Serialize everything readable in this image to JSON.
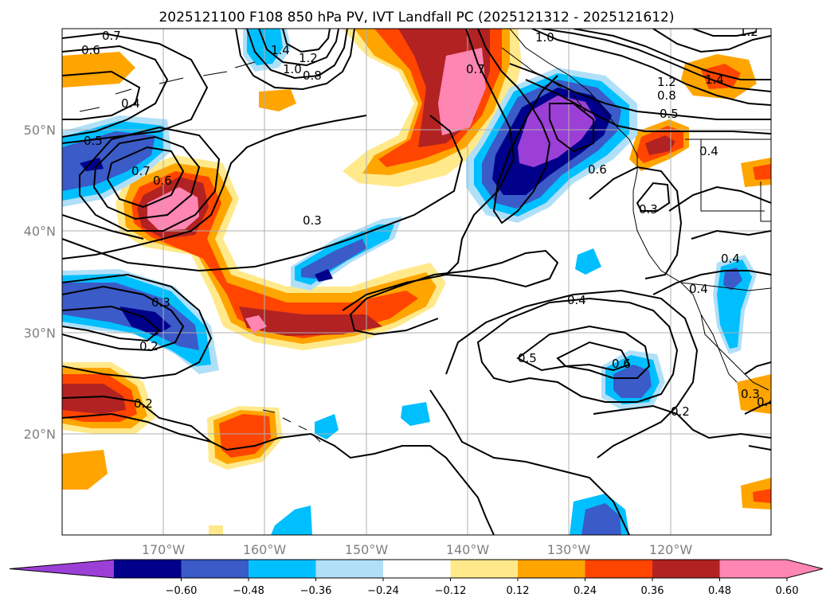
{
  "title": "2025121100 F108 850 hPa PV, IVT Landfall PC (2025121312 - 2025121612)",
  "map": {
    "lat_labels": [
      "50°N",
      "40°N",
      "30°N",
      "20°N"
    ],
    "lon_labels": [
      "170°W",
      "160°W",
      "150°W",
      "140°W",
      "130°W",
      "120°W"
    ]
  },
  "contour_labels": [
    "0.7",
    "0.6",
    "1.4",
    "1.0",
    "1.2",
    "0.8",
    "0.7",
    "1.0",
    "1.2",
    "1.4",
    "1.2",
    "0.8",
    "0.5",
    "0.4",
    "0.5",
    "0.7",
    "0.6",
    "0.6",
    "0.4",
    "0.3",
    "0.3",
    "0.4",
    "0.4",
    "0.3",
    "0.2",
    "0.4",
    "0.5",
    "0.6",
    "0.2",
    "0.2",
    "0.4",
    "0.3"
  ],
  "colorbar": {
    "ticks": [
      "−0.60",
      "−0.48",
      "−0.36",
      "−0.24",
      "−0.12",
      "0.12",
      "0.24",
      "0.36",
      "0.48",
      "0.60"
    ],
    "colors": [
      "#9b3fd6",
      "#00008b",
      "#3a5bc8",
      "#00bfff",
      "#b0e0f8",
      "#ffffff",
      "#ffe98a",
      "#ffa500",
      "#ff4500",
      "#b22222",
      "#ff85b3",
      "#ff85b3"
    ]
  }
}
